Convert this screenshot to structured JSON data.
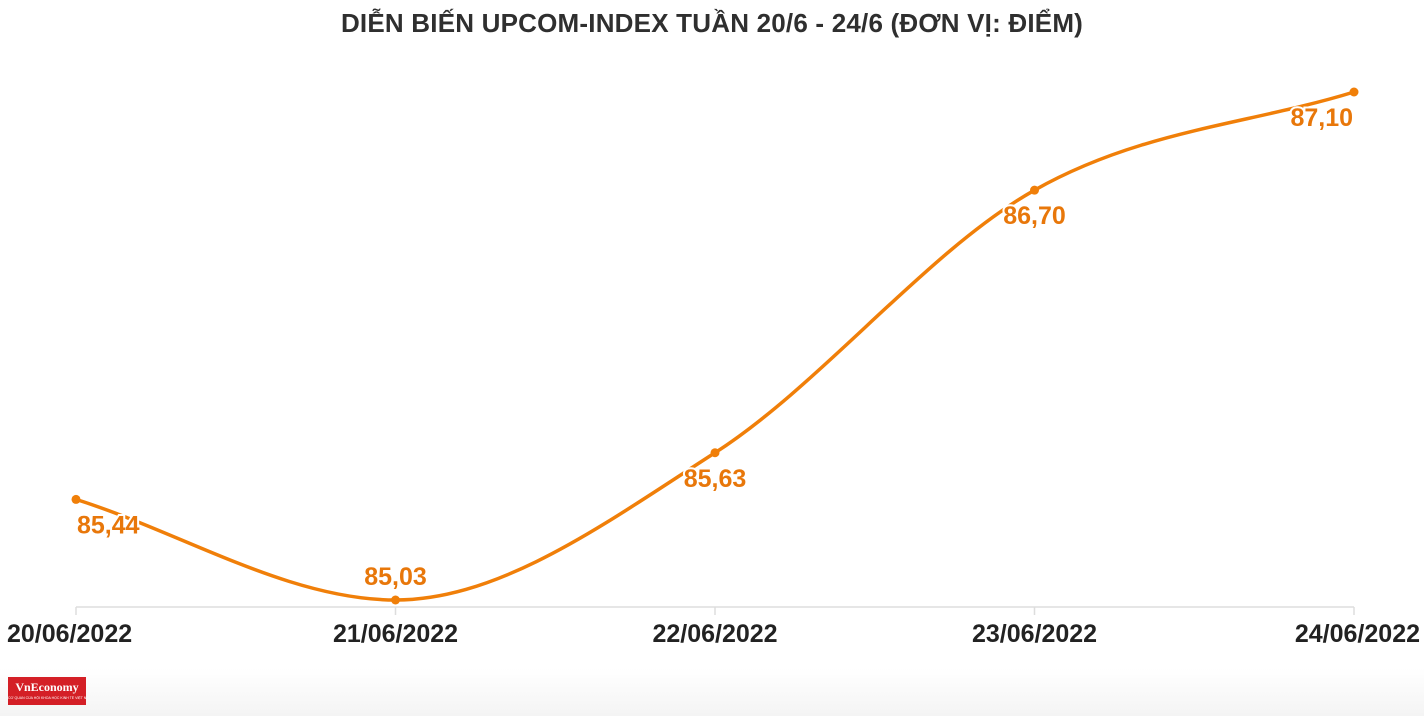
{
  "chart_data": {
    "type": "line",
    "title": "DIỄN BIẾN UPCOM-INDEX TUẦN 20/6 - 24/6 (ĐƠN VỊ: ĐIỂM)",
    "categories": [
      "20/06/2022",
      "21/06/2022",
      "22/06/2022",
      "23/06/2022",
      "24/06/2022"
    ],
    "values": [
      85.44,
      85.03,
      85.63,
      86.7,
      87.1
    ],
    "data_labels": [
      "85,44",
      "85,03",
      "85,63",
      "86,70",
      "87,10"
    ],
    "xlabel": "",
    "ylabel": "",
    "grid": false,
    "smooth": true,
    "colors": {
      "line": "#f07f09",
      "label": "#e8770a",
      "axis": "#dddddd",
      "tick_label": "#222222",
      "title": "#2f2f2f"
    }
  },
  "branding": {
    "logo_text": "VnEconomy",
    "logo_tagline": "CƠ QUAN CỦA HỘI KHOA HỌC KINH TẾ VIỆT NAM",
    "logo_color": "#d41f26"
  }
}
